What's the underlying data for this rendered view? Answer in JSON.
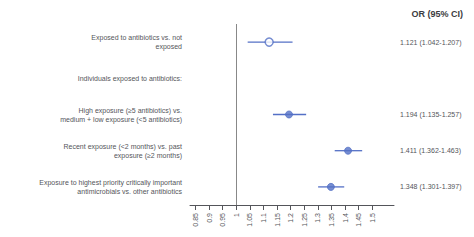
{
  "chart_data": {
    "type": "forest",
    "title": "OR (95% CI)",
    "subheader": "Individuals exposed to antibiotics:",
    "categories": [
      "Exposed to antibiotics vs. not\nexposed",
      "High exposure (≥5 antibiotics) vs.\nmedium + low exposure (<5 antibiotics)",
      "Recent exposure (<2 months) vs. past\nexposure (≥2 months)",
      "Exposure to highest priority critically important\nantimicrobials vs. other antibiotics"
    ],
    "series": [
      {
        "marker": "open",
        "values": [
          1.121,
          null,
          null,
          null
        ],
        "ci_low": [
          1.042,
          null,
          null,
          null
        ],
        "ci_high": [
          1.207,
          null,
          null,
          null
        ],
        "value_labels": [
          "1.121 (1.042-1.207)",
          null,
          null,
          null
        ]
      },
      {
        "marker": "filled",
        "values": [
          null,
          1.194,
          1.411,
          1.348
        ],
        "ci_low": [
          null,
          1.135,
          1.362,
          1.301
        ],
        "ci_high": [
          null,
          1.257,
          1.463,
          1.397
        ],
        "value_labels": [
          null,
          "1.194 (1.135-1.257)",
          "1.411 (1.362-1.463)",
          "1.348 (1.301-1.397)"
        ]
      }
    ],
    "xref": 1,
    "xlim": [
      0.83,
      1.58
    ],
    "xticks": [
      0.85,
      0.9,
      0.95,
      1,
      1.05,
      1.1,
      1.15,
      1.2,
      1.25,
      1.3,
      1.35,
      1.4,
      1.45,
      1.5
    ],
    "grid": false
  }
}
